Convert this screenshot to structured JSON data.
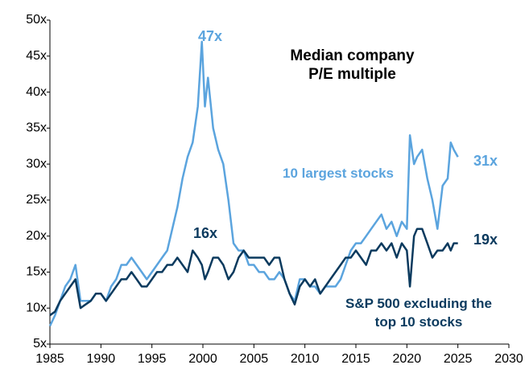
{
  "chart_data": {
    "type": "line",
    "title": "Median company P/E multiple",
    "x": [
      1985,
      1985.5,
      1986,
      1986.5,
      1987,
      1987.5,
      1988,
      1988.5,
      1989,
      1989.5,
      1990,
      1990.5,
      1991,
      1991.5,
      1992,
      1992.5,
      1993,
      1993.5,
      1994,
      1994.5,
      1995,
      1995.5,
      1996,
      1996.5,
      1997,
      1997.5,
      1998,
      1998.5,
      1999,
      1999.5,
      1999.9,
      2000.2,
      2000.5,
      2001,
      2001.5,
      2002,
      2002.5,
      2003,
      2003.5,
      2004,
      2004.5,
      2005,
      2005.5,
      2006,
      2006.5,
      2007,
      2007.5,
      2008,
      2008.5,
      2009,
      2009.5,
      2010,
      2010.5,
      2011,
      2011.5,
      2012,
      2012.5,
      2013,
      2013.5,
      2014,
      2014.5,
      2015,
      2015.5,
      2016,
      2016.5,
      2017,
      2017.5,
      2018,
      2018.5,
      2019,
      2019.5,
      2020,
      2020.3,
      2020.7,
      2021,
      2021.5,
      2022,
      2022.5,
      2023,
      2023.5,
      2024,
      2024.3,
      2024.6,
      2025
    ],
    "series": [
      {
        "color": "#5ba4de",
        "values": [
          7.5,
          9,
          11,
          13,
          14,
          16,
          11,
          11,
          11,
          12,
          12,
          11,
          13,
          14,
          16,
          16,
          17,
          16,
          15,
          14,
          15,
          16,
          17,
          18,
          21,
          24,
          28,
          31,
          33,
          38,
          47,
          38,
          42,
          35,
          32,
          30,
          25,
          19,
          18,
          18,
          16,
          16,
          15,
          15,
          14,
          14,
          15,
          14,
          12,
          11,
          14,
          14,
          13,
          13,
          12,
          13,
          13,
          13,
          14,
          16,
          18,
          19,
          19,
          20,
          21,
          22,
          23,
          21,
          22,
          20,
          22,
          21,
          34,
          30,
          31,
          32,
          28,
          25,
          21,
          27,
          28,
          33,
          32,
          31
        ]
      },
      {
        "color": "#0b3a5e",
        "values": [
          9,
          9.5,
          11,
          12,
          13,
          14,
          10,
          10.5,
          11,
          12,
          12,
          11,
          12,
          13,
          14,
          14,
          15,
          14,
          13,
          13,
          14,
          15,
          15,
          16,
          16,
          17,
          16,
          15,
          18,
          17,
          16,
          14,
          15,
          17,
          17,
          16,
          14,
          15,
          17,
          18,
          17,
          17,
          17,
          17,
          16,
          17,
          17,
          14,
          12,
          10.5,
          13,
          14,
          13,
          14,
          12,
          13,
          14,
          15,
          16,
          17,
          17,
          18,
          17,
          16,
          18,
          18,
          19,
          18,
          19,
          17,
          19,
          18,
          13,
          20,
          21,
          21,
          19,
          17,
          18,
          18,
          19,
          18,
          19,
          19
        ]
      }
    ],
    "xlim": [
      1985,
      2030
    ],
    "xticks": [
      1985,
      1990,
      1995,
      2000,
      2005,
      2010,
      2015,
      2020,
      2025,
      2030
    ],
    "ylim": [
      5,
      50
    ],
    "yticks": [
      {
        "value": 5,
        "label": "5x"
      },
      {
        "value": 10,
        "label": "10x"
      },
      {
        "value": 15,
        "label": "15x"
      },
      {
        "value": 20,
        "label": "20x"
      },
      {
        "value": 25,
        "label": "25x"
      },
      {
        "value": 30,
        "label": "30x"
      },
      {
        "value": 35,
        "label": "35x"
      },
      {
        "value": 40,
        "label": "40x"
      },
      {
        "value": 45,
        "label": "45x"
      },
      {
        "value": 50,
        "label": "50x"
      }
    ],
    "grid": false,
    "annotations": [
      {
        "text": "47x",
        "color": "#5ba4de"
      },
      {
        "text": "31x",
        "color": "#5ba4de"
      },
      {
        "text": "10 largest stocks",
        "color": "#5ba4de"
      },
      {
        "text": "16x",
        "color": "#0b3a5e"
      },
      {
        "text": "19x",
        "color": "#0b3a5e"
      },
      {
        "text": "S&P 500 excluding the top 10 stocks",
        "color": "#0b3a5e"
      }
    ]
  }
}
